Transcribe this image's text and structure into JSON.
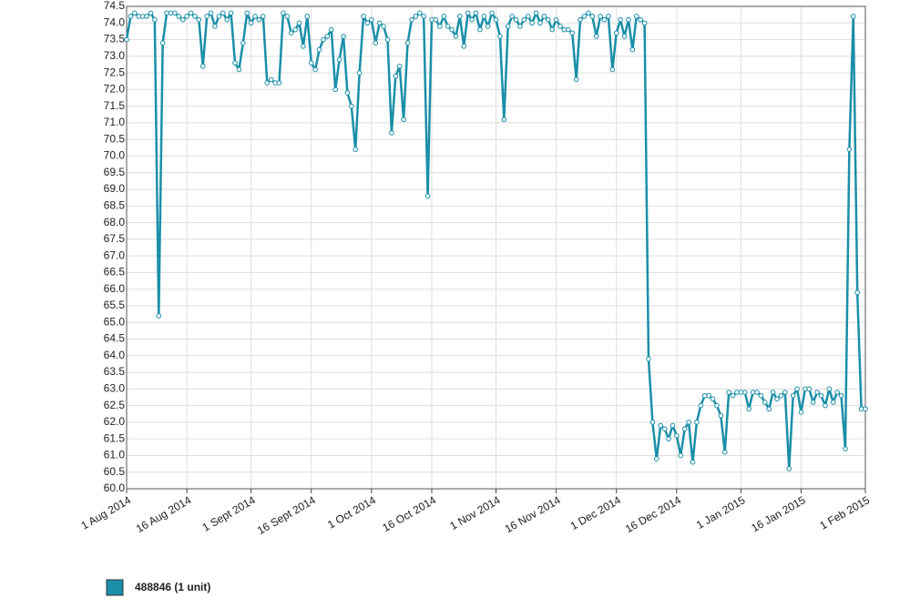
{
  "chart_data": {
    "type": "line",
    "x": [
      "2014-08-01",
      "2014-08-02",
      "2014-08-03",
      "2014-08-04",
      "2014-08-05",
      "2014-08-06",
      "2014-08-07",
      "2014-08-08",
      "2014-08-09",
      "2014-08-10",
      "2014-08-11",
      "2014-08-12",
      "2014-08-13",
      "2014-08-14",
      "2014-08-15",
      "2014-08-16",
      "2014-08-17",
      "2014-08-18",
      "2014-08-19",
      "2014-08-20",
      "2014-08-21",
      "2014-08-22",
      "2014-08-23",
      "2014-08-24",
      "2014-08-25",
      "2014-08-26",
      "2014-08-27",
      "2014-08-28",
      "2014-08-29",
      "2014-08-30",
      "2014-08-31",
      "2014-09-01",
      "2014-09-02",
      "2014-09-03",
      "2014-09-04",
      "2014-09-05",
      "2014-09-06",
      "2014-09-07",
      "2014-09-08",
      "2014-09-09",
      "2014-09-10",
      "2014-09-11",
      "2014-09-12",
      "2014-09-13",
      "2014-09-14",
      "2014-09-15",
      "2014-09-16",
      "2014-09-17",
      "2014-09-18",
      "2014-09-19",
      "2014-09-20",
      "2014-09-21",
      "2014-09-22",
      "2014-09-23",
      "2014-09-24",
      "2014-09-25",
      "2014-09-26",
      "2014-09-27",
      "2014-09-28",
      "2014-09-29",
      "2014-09-30",
      "2014-10-01",
      "2014-10-02",
      "2014-10-03",
      "2014-10-04",
      "2014-10-05",
      "2014-10-06",
      "2014-10-07",
      "2014-10-08",
      "2014-10-09",
      "2014-10-10",
      "2014-10-11",
      "2014-10-12",
      "2014-10-13",
      "2014-10-14",
      "2014-10-15",
      "2014-10-16",
      "2014-10-17",
      "2014-10-18",
      "2014-10-19",
      "2014-10-20",
      "2014-10-21",
      "2014-10-22",
      "2014-10-23",
      "2014-10-24",
      "2014-10-25",
      "2014-10-26",
      "2014-10-27",
      "2014-10-28",
      "2014-10-29",
      "2014-10-30",
      "2014-10-31",
      "2014-11-01",
      "2014-11-02",
      "2014-11-03",
      "2014-11-04",
      "2014-11-05",
      "2014-11-06",
      "2014-11-07",
      "2014-11-08",
      "2014-11-09",
      "2014-11-10",
      "2014-11-11",
      "2014-11-12",
      "2014-11-13",
      "2014-11-14",
      "2014-11-15",
      "2014-11-16",
      "2014-11-17",
      "2014-11-18",
      "2014-11-19",
      "2014-11-20",
      "2014-11-21",
      "2014-11-22",
      "2014-11-23",
      "2014-11-24",
      "2014-11-25",
      "2014-11-26",
      "2014-11-27",
      "2014-11-28",
      "2014-11-29",
      "2014-11-30",
      "2014-12-01",
      "2014-12-02",
      "2014-12-03",
      "2014-12-04",
      "2014-12-05",
      "2014-12-06",
      "2014-12-07",
      "2014-12-08",
      "2014-12-09",
      "2014-12-10",
      "2014-12-11",
      "2014-12-12",
      "2014-12-13",
      "2014-12-14",
      "2014-12-15",
      "2014-12-16",
      "2014-12-17",
      "2014-12-18",
      "2014-12-19",
      "2014-12-20",
      "2014-12-21",
      "2014-12-22",
      "2014-12-23",
      "2014-12-24",
      "2014-12-25",
      "2014-12-26",
      "2014-12-27",
      "2014-12-28",
      "2014-12-29",
      "2014-12-30",
      "2014-12-31",
      "2015-01-01",
      "2015-01-02",
      "2015-01-03",
      "2015-01-04",
      "2015-01-05",
      "2015-01-06",
      "2015-01-07",
      "2015-01-08",
      "2015-01-09",
      "2015-01-10",
      "2015-01-11",
      "2015-01-12",
      "2015-01-13",
      "2015-01-14",
      "2015-01-15",
      "2015-01-16",
      "2015-01-17",
      "2015-01-18",
      "2015-01-19",
      "2015-01-20",
      "2015-01-21",
      "2015-01-22",
      "2015-01-23",
      "2015-01-24",
      "2015-01-25",
      "2015-01-26",
      "2015-01-27",
      "2015-01-28",
      "2015-01-29",
      "2015-01-30",
      "2015-01-31",
      "2015-02-01"
    ],
    "series": [
      {
        "name": "488846 (1 unit)",
        "color": "#1a8fa8",
        "values": [
          73.5,
          74.2,
          74.3,
          74.2,
          74.2,
          74.2,
          74.3,
          74.1,
          65.2,
          73.4,
          74.3,
          74.3,
          74.3,
          74.2,
          74.1,
          74.2,
          74.3,
          74.2,
          74.1,
          72.7,
          74.2,
          74.3,
          73.9,
          74.2,
          74.3,
          74.1,
          74.3,
          72.8,
          72.6,
          73.4,
          74.3,
          74.0,
          74.2,
          74.1,
          74.2,
          72.2,
          72.3,
          72.2,
          72.2,
          74.3,
          74.2,
          73.7,
          73.8,
          74.0,
          73.3,
          74.2,
          72.8,
          72.6,
          73.2,
          73.5,
          73.6,
          73.8,
          72.0,
          72.9,
          73.6,
          71.9,
          71.5,
          70.2,
          72.5,
          74.2,
          74.0,
          74.1,
          73.4,
          74.0,
          73.9,
          73.5,
          70.7,
          72.4,
          72.7,
          71.1,
          73.4,
          74.1,
          74.2,
          74.3,
          74.2,
          68.8,
          74.1,
          74.1,
          73.9,
          74.2,
          73.9,
          73.8,
          73.6,
          74.2,
          73.3,
          74.3,
          74.1,
          74.3,
          73.8,
          74.2,
          73.9,
          74.3,
          74.1,
          73.6,
          71.1,
          73.9,
          74.2,
          74.1,
          73.9,
          74.1,
          74.2,
          74.0,
          74.3,
          74.0,
          74.2,
          74.1,
          73.8,
          74.1,
          73.9,
          73.8,
          73.8,
          73.7,
          72.3,
          74.1,
          74.2,
          74.3,
          74.2,
          73.6,
          74.2,
          74.1,
          74.2,
          72.6,
          73.7,
          74.1,
          73.6,
          74.1,
          73.2,
          74.2,
          74.1,
          74.0,
          63.9,
          62.0,
          60.9,
          61.9,
          61.8,
          61.5,
          61.9,
          61.6,
          61.0,
          61.8,
          62.0,
          60.8,
          62.0,
          62.5,
          62.8,
          62.8,
          62.7,
          62.5,
          62.2,
          61.1,
          62.9,
          62.8,
          62.9,
          62.9,
          62.9,
          62.4,
          62.9,
          62.9,
          62.8,
          62.6,
          62.4,
          62.9,
          62.7,
          62.8,
          62.9,
          60.6,
          62.8,
          63.0,
          62.3,
          63.0,
          63.0,
          62.6,
          62.9,
          62.8,
          62.5,
          63.0,
          62.6,
          62.9,
          62.8,
          61.2,
          70.2,
          74.2,
          65.9,
          62.4,
          62.4
        ]
      }
    ],
    "xlim": [
      "2014-08-01",
      "2015-02-01"
    ],
    "xticks": [
      {
        "value": "2014-08-01",
        "label": "1 Aug 2014"
      },
      {
        "value": "2014-08-16",
        "label": "16 Aug 2014"
      },
      {
        "value": "2014-09-01",
        "label": "1 Sept 2014"
      },
      {
        "value": "2014-09-16",
        "label": "16 Sept 2014"
      },
      {
        "value": "2014-10-01",
        "label": "1 Oct 2014"
      },
      {
        "value": "2014-10-16",
        "label": "16 Oct 2014"
      },
      {
        "value": "2014-11-01",
        "label": "1 Nov 2014"
      },
      {
        "value": "2014-11-16",
        "label": "16 Nov 2014"
      },
      {
        "value": "2014-12-01",
        "label": "1 Dec 2014"
      },
      {
        "value": "2014-12-16",
        "label": "16 Dec 2014"
      },
      {
        "value": "2015-01-01",
        "label": "1 Jan 2015"
      },
      {
        "value": "2015-01-16",
        "label": "16 Jan 2015"
      },
      {
        "value": "2015-02-01",
        "label": "1 Feb 2015"
      }
    ],
    "ylim": [
      60,
      74.5
    ],
    "yticks": [
      {
        "value": 60,
        "label": "60.0"
      },
      60.5,
      {
        "value": 61,
        "label": "61.0"
      },
      61.5,
      {
        "value": 62,
        "label": "62.0"
      },
      62.5,
      {
        "value": 63,
        "label": "63.0"
      },
      63.5,
      {
        "value": 64,
        "label": "64.0"
      },
      64.5,
      {
        "value": 65,
        "label": "65.0"
      },
      65.5,
      {
        "value": 66,
        "label": "66.0"
      },
      66.5,
      {
        "value": 67,
        "label": "67.0"
      },
      67.5,
      {
        "value": 68,
        "label": "68.0"
      },
      68.5,
      {
        "value": 69,
        "label": "69.0"
      },
      69.5,
      {
        "value": 70,
        "label": "70.0"
      },
      70.5,
      {
        "value": 71,
        "label": "71.0"
      },
      71.5,
      {
        "value": 72,
        "label": "72.0"
      },
      72.5,
      {
        "value": 73,
        "label": "73.0"
      },
      73.5,
      {
        "value": 74,
        "label": "74.0"
      },
      74.5
    ],
    "grid": true
  }
}
